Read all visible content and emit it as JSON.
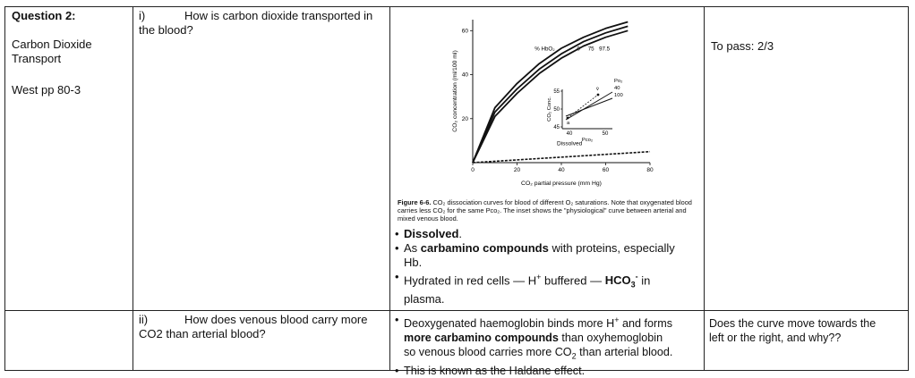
{
  "question": {
    "title": "Question 2:",
    "topic_line1": "Carbon Dioxide",
    "topic_line2": "Transport",
    "reference": "West pp 80-3"
  },
  "part1": {
    "numeral": "i)",
    "question_line1": "How is carbon dioxide transported in",
    "question_line2": "the blood?",
    "pass": "To pass: 2/3",
    "figure_caption_bold": "Figure 6-6.",
    "figure_caption": "CO₂ dissociation curves for blood of different O₂ saturations. Note that oxygenated blood carries less CO₂ for the same Pco₂. The inset shows the \"physiological\" curve between arterial and mixed venous blood.",
    "answers": {
      "a1_bold": "Dissolved",
      "a1_tail": ".",
      "a2_pre": "As ",
      "a2_bold": "carbamino compounds",
      "a2_tail": " with proteins, especially",
      "a2_line2": "Hb.",
      "a3_pre": "Hydrated in red cells — H",
      "a3_sup": "+",
      "a3_mid": " buffered — ",
      "a3_bold": "HCO",
      "a3_sub": "3",
      "a3_sup2": "-",
      "a3_tail": " in",
      "a3_line2": "plasma."
    }
  },
  "part2": {
    "numeral": "ii)",
    "question_line1": "How does venous blood carry more",
    "question_line2": "CO2 than arterial blood?",
    "b1_pre": "Deoxygenated haemoglobin binds more H",
    "b1_sup": "+",
    "b1_tail": " and forms",
    "b1_bold": "more carbamino compounds",
    "b1_tail2": " than oxyhemoglobin",
    "b1_line3_pre": "so venous blood carries more CO",
    "b1_line3_sub": "2",
    "b1_line3_tail": " than arterial blood.",
    "b2": "This is known as the Haldane effect.",
    "note_line1": "Does the curve move towards the",
    "note_line2": "left or the right, and why??"
  },
  "chart_data": {
    "type": "line",
    "xlabel": "CO₂ partial pressure (mm Hg)",
    "ylabel": "CO₂ concentration (ml/100 ml)",
    "xlim": [
      0,
      80
    ],
    "ylim": [
      0,
      65
    ],
    "xticks": [
      "0",
      "20",
      "40",
      "60",
      "80"
    ],
    "yticks": [
      "20",
      "40",
      "60"
    ],
    "curve_label": "% HbO₂",
    "series": [
      {
        "name": "0",
        "x": [
          0,
          10,
          20,
          30,
          40,
          50,
          60,
          70
        ],
        "y": [
          0,
          25,
          36,
          45,
          52,
          57,
          61,
          64
        ]
      },
      {
        "name": "75",
        "x": [
          0,
          10,
          20,
          30,
          40,
          50,
          60,
          70
        ],
        "y": [
          0,
          23,
          33.5,
          42.5,
          49.5,
          55,
          59,
          62
        ]
      },
      {
        "name": "97.5",
        "x": [
          0,
          10,
          20,
          30,
          40,
          50,
          60,
          70
        ],
        "y": [
          0,
          21,
          31.5,
          40.5,
          47.5,
          53,
          57,
          60
        ]
      },
      {
        "name": "Dissolved",
        "x": [
          0,
          80
        ],
        "y": [
          0,
          5
        ]
      }
    ],
    "inset": {
      "ylabel": "CO₂ Conc.",
      "xlabel": "Pco₂",
      "yticks": [
        "45",
        "50",
        "55"
      ],
      "xticks": [
        "40",
        "50"
      ],
      "po2_label": "Po₂",
      "po2_values": [
        "40",
        "100"
      ],
      "point_a": "a",
      "point_v": "v̄"
    }
  }
}
